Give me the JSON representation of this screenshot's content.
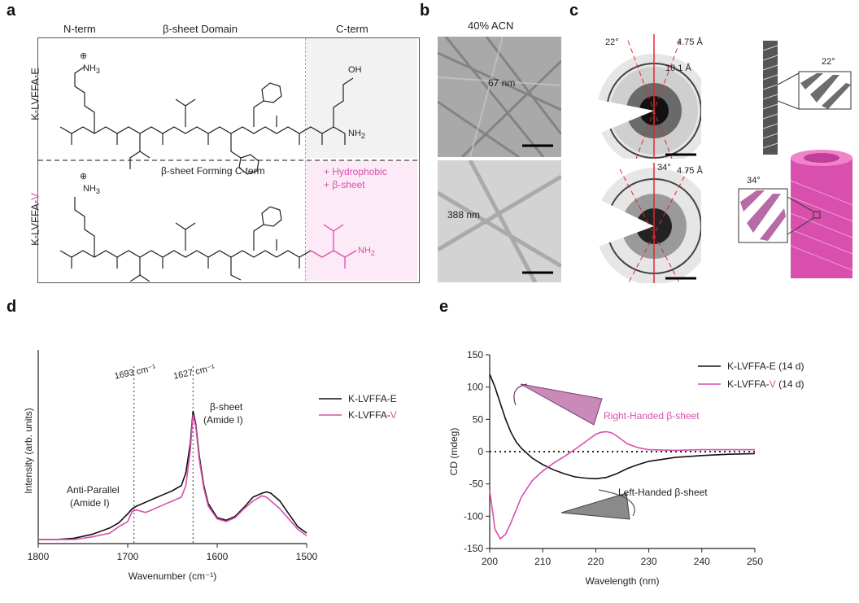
{
  "colors": {
    "pink": "#d94fae",
    "black": "#111111",
    "pink_fill": "#fceaf6",
    "gray_fill": "#f2f2f2"
  },
  "panel_a": {
    "letter": "a",
    "header_nterm": "N-term",
    "header_domain": "β-sheet Domain",
    "header_cterm": "C-term",
    "row1_label": "K-LVFFA-E",
    "row2_label_prefix": "K-LVFFA-",
    "row2_label_suffix": "V",
    "mid_caption": "β-sheet Forming C-term",
    "hydrophobic": "+ Hydrophobic",
    "bsheet": "+ β-sheet",
    "nh3": "NH",
    "nh3_sub": "3",
    "plus": "⊕",
    "oh": "OH",
    "nh2": "NH",
    "nh2_sub": "2"
  },
  "panel_b": {
    "letter": "b",
    "title": "40% ACN",
    "top_dim": "67 nm",
    "bottom_dim": "388 nm"
  },
  "panel_c": {
    "letter": "c",
    "top_angle": "22°",
    "top_d1": "4.75 Å",
    "top_d2": "10.1 Å",
    "bottom_angle": "34°",
    "bottom_d1": "4.75 Å",
    "fiber_angle_top": "22°",
    "fiber_angle_bottom": "34°"
  },
  "panel_d": {
    "letter": "d",
    "chart_data": {
      "type": "line",
      "xlabel": "Wavenumber (cm⁻¹)",
      "ylabel": "Intensity (arb. units)",
      "xlim": [
        1800,
        1500
      ],
      "x_ticks": [
        1800,
        1700,
        1600,
        1500
      ],
      "annotations": [
        {
          "text": "1693 cm⁻¹",
          "x": 1693
        },
        {
          "text": "1627 cm⁻¹",
          "x": 1627
        },
        {
          "text": "β-sheet",
          "text2": "(Amide I)"
        },
        {
          "text": "Anti-Parallel",
          "text2": "(Amide I)"
        }
      ],
      "series": [
        {
          "name": "K-LVFFA-E",
          "color": "#111111",
          "x": [
            1800,
            1780,
            1760,
            1740,
            1720,
            1710,
            1700,
            1695,
            1690,
            1680,
            1670,
            1660,
            1650,
            1640,
            1635,
            1630,
            1627,
            1624,
            1620,
            1615,
            1610,
            1600,
            1590,
            1580,
            1570,
            1560,
            1550,
            1545,
            1540,
            1530,
            1520,
            1510,
            1500
          ],
          "y": [
            0.0,
            0.0,
            0.01,
            0.04,
            0.09,
            0.13,
            0.2,
            0.24,
            0.26,
            0.29,
            0.32,
            0.35,
            0.38,
            0.42,
            0.52,
            0.75,
            1.0,
            0.9,
            0.65,
            0.42,
            0.28,
            0.17,
            0.15,
            0.18,
            0.25,
            0.33,
            0.36,
            0.37,
            0.36,
            0.3,
            0.2,
            0.1,
            0.05
          ]
        },
        {
          "name": "K-LVFFA-V",
          "color": "#d94fae",
          "x": [
            1800,
            1780,
            1760,
            1740,
            1720,
            1710,
            1700,
            1695,
            1690,
            1680,
            1670,
            1660,
            1650,
            1640,
            1635,
            1630,
            1627,
            1624,
            1620,
            1615,
            1610,
            1600,
            1590,
            1580,
            1570,
            1560,
            1550,
            1545,
            1540,
            1530,
            1520,
            1510,
            1500
          ],
          "y": [
            0.0,
            0.0,
            0.0,
            0.02,
            0.05,
            0.1,
            0.14,
            0.22,
            0.23,
            0.21,
            0.24,
            0.27,
            0.3,
            0.33,
            0.42,
            0.7,
            0.97,
            0.88,
            0.62,
            0.4,
            0.26,
            0.16,
            0.14,
            0.17,
            0.24,
            0.3,
            0.34,
            0.33,
            0.3,
            0.24,
            0.16,
            0.08,
            0.03
          ]
        }
      ]
    }
  },
  "panel_e": {
    "letter": "e",
    "right_label": "Right-Handed β-sheet",
    "left_label": "Left-Handed β-sheet",
    "chart_data": {
      "type": "line",
      "xlabel": "Wavelength (nm)",
      "ylabel": "CD (mdeg)",
      "xlim": [
        200,
        250
      ],
      "ylim": [
        -150,
        150
      ],
      "x_ticks": [
        200,
        210,
        220,
        230,
        240,
        250
      ],
      "y_ticks": [
        -150,
        -100,
        -50,
        0,
        50,
        100,
        150
      ],
      "series": [
        {
          "name": "K-LVFFA-E (14 d)",
          "color": "#111111",
          "x": [
            200,
            201,
            202,
            203,
            204,
            205,
            206,
            208,
            210,
            212,
            214,
            216,
            218,
            220,
            222,
            224,
            226,
            228,
            230,
            235,
            240,
            245,
            250
          ],
          "y": [
            120,
            100,
            75,
            50,
            30,
            15,
            5,
            -10,
            -20,
            -28,
            -34,
            -39,
            -41,
            -42,
            -40,
            -34,
            -26,
            -20,
            -15,
            -9,
            -6,
            -4,
            -3
          ]
        },
        {
          "name": "K-LVFFA-V (14 d)",
          "color": "#d94fae",
          "x": [
            200,
            201,
            202,
            203,
            204,
            205,
            206,
            208,
            210,
            212,
            214,
            216,
            218,
            220,
            221,
            222,
            223,
            224,
            226,
            228,
            230,
            235,
            240,
            245,
            250
          ],
          "y": [
            -60,
            -120,
            -135,
            -128,
            -110,
            -90,
            -70,
            -45,
            -30,
            -18,
            -8,
            3,
            15,
            27,
            30,
            31,
            29,
            24,
            12,
            6,
            3,
            2,
            3,
            3,
            3
          ]
        }
      ],
      "legend": [
        {
          "prefix": "K-LVFFA-E (14 d)",
          "suffix": ""
        },
        {
          "prefix": "K-LVFFA-",
          "suffix": "V",
          "tail": " (14 d)"
        }
      ]
    }
  }
}
